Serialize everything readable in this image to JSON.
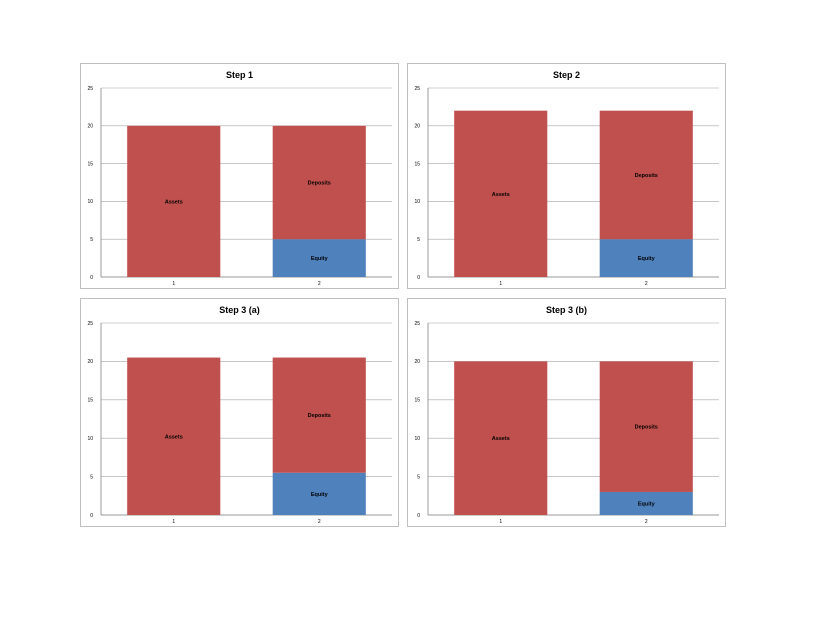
{
  "colors": {
    "assets": "#c0504d",
    "deposits": "#c0504d",
    "equity": "#4f81bd",
    "grid": "#a6a6a6"
  },
  "chart_data": [
    {
      "type": "bar",
      "stacked": true,
      "title": "Step 1",
      "categories": [
        "1",
        "2"
      ],
      "ylim": [
        0,
        25
      ],
      "yticks": [
        0,
        5,
        10,
        15,
        20,
        25
      ],
      "grid": true,
      "series": [
        {
          "name": "Assets",
          "values": [
            20,
            0
          ]
        },
        {
          "name": "Equity",
          "values": [
            0,
            5
          ]
        },
        {
          "name": "Deposits",
          "values": [
            0,
            15
          ]
        }
      ]
    },
    {
      "type": "bar",
      "stacked": true,
      "title": "Step 2",
      "categories": [
        "1",
        "2"
      ],
      "ylim": [
        0,
        25
      ],
      "yticks": [
        0,
        5,
        10,
        15,
        20,
        25
      ],
      "grid": true,
      "series": [
        {
          "name": "Assets",
          "values": [
            22,
            0
          ]
        },
        {
          "name": "Equity",
          "values": [
            0,
            5
          ]
        },
        {
          "name": "Deposits",
          "values": [
            0,
            17
          ]
        }
      ]
    },
    {
      "type": "bar",
      "stacked": true,
      "title": "Step 3 (a)",
      "categories": [
        "1",
        "2"
      ],
      "ylim": [
        0,
        25
      ],
      "yticks": [
        0,
        5,
        10,
        15,
        20,
        25
      ],
      "grid": true,
      "series": [
        {
          "name": "Assets",
          "values": [
            20.5,
            0
          ]
        },
        {
          "name": "Equity",
          "values": [
            0,
            5.5
          ]
        },
        {
          "name": "Deposits",
          "values": [
            0,
            15
          ]
        }
      ]
    },
    {
      "type": "bar",
      "stacked": true,
      "title": "Step 3 (b)",
      "categories": [
        "1",
        "2"
      ],
      "ylim": [
        0,
        25
      ],
      "yticks": [
        0,
        5,
        10,
        15,
        20,
        25
      ],
      "grid": true,
      "series": [
        {
          "name": "Assets",
          "values": [
            20,
            0
          ]
        },
        {
          "name": "Equity",
          "values": [
            0,
            3
          ]
        },
        {
          "name": "Deposits",
          "values": [
            0,
            17
          ]
        }
      ]
    }
  ]
}
